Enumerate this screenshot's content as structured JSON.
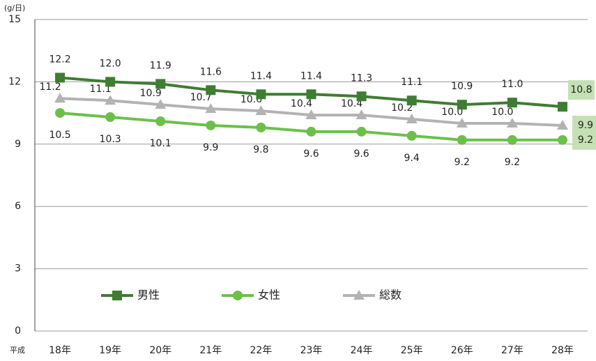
{
  "chart_data": {
    "type": "line",
    "unit_label": "(g/日)",
    "x_prefix": "平成",
    "categories": [
      "18年",
      "19年",
      "20年",
      "21年",
      "22年",
      "23年",
      "24年",
      "25年",
      "26年",
      "27年",
      "28年"
    ],
    "series": [
      {
        "name": "男性",
        "color": "#3e7d32",
        "marker": "square",
        "values": [
          12.2,
          12.0,
          11.9,
          11.6,
          11.4,
          11.4,
          11.3,
          11.1,
          10.9,
          11.0,
          10.8
        ],
        "value_labels": [
          "12.2",
          "12.0",
          "11.9",
          "11.6",
          "11.4",
          "11.4",
          "11.3",
          "11.1",
          "10.9",
          "11.0",
          "10.8"
        ]
      },
      {
        "name": "女性",
        "color": "#6cc04a",
        "marker": "circle",
        "values": [
          10.5,
          10.3,
          10.1,
          9.9,
          9.8,
          9.6,
          9.6,
          9.4,
          9.2,
          9.2,
          9.2
        ],
        "value_labels": [
          "10.5",
          "10.3",
          "10.1",
          "9.9",
          "9.8",
          "9.6",
          "9.6",
          "9.4",
          "9.2",
          "9.2",
          "9.2"
        ]
      },
      {
        "name": "総数",
        "color": "#b3b3b3",
        "marker": "triangle",
        "values": [
          11.2,
          11.1,
          10.9,
          10.7,
          10.6,
          10.4,
          10.4,
          10.2,
          10.0,
          10.0,
          9.9
        ],
        "value_labels": [
          "11.2",
          "11.1",
          "10.9",
          "10.7",
          "10.6",
          "10.4",
          "10.4",
          "10.2",
          "10.0",
          "10.0",
          "9.9"
        ]
      }
    ],
    "ylim": [
      0,
      15
    ],
    "yticks": [
      0,
      3,
      6,
      9,
      12,
      15
    ],
    "grid": true
  }
}
